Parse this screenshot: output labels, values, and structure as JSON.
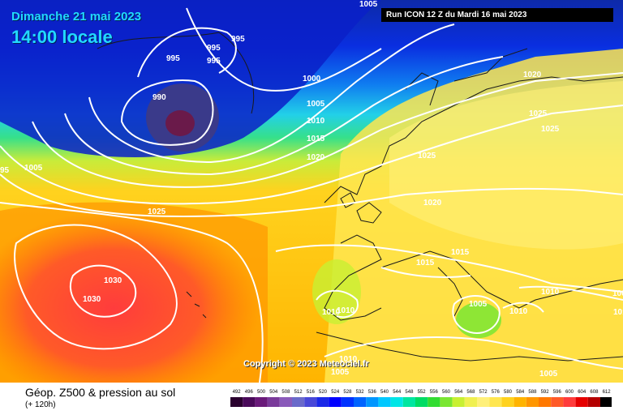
{
  "header": {
    "title": "Dimanche 21 mai 2023",
    "subtitle": "14:00 locale",
    "run_info": "Run ICON 12 Z du Mardi 16 mai 2023"
  },
  "map": {
    "copyright": "Copyright © 2023 Meteociel.fr",
    "isobar_labels": [
      "995",
      "995",
      "995",
      "995",
      "990",
      "1000",
      "1005",
      "1010",
      "1015",
      "1020",
      "1025",
      "1030",
      "1030",
      "1020",
      "1025",
      "1025",
      "1025",
      "1020",
      "1015",
      "1015",
      "1010",
      "1010",
      "1005",
      "1010",
      "1010",
      "1005",
      "1010",
      "1005",
      "1005",
      "95",
      "1005",
      "1010",
      "1005"
    ]
  },
  "legend": {
    "title": "Géop. Z500 & pression au sol",
    "subtitle": "(+ 120h)",
    "scale_values": [
      "492",
      "496",
      "500",
      "504",
      "508",
      "512",
      "516",
      "520",
      "524",
      "528",
      "532",
      "536",
      "540",
      "544",
      "548",
      "552",
      "556",
      "560",
      "564",
      "568",
      "572",
      "576",
      "580",
      "584",
      "588",
      "592",
      "596",
      "600",
      "604",
      "608",
      "612"
    ],
    "scale_colors": [
      "#2a002e",
      "#4a0a5a",
      "#6a1a7a",
      "#7a3a9a",
      "#8a5aba",
      "#6a6aca",
      "#4848d8",
      "#1a28e8",
      "#0000ff",
      "#0032ff",
      "#0064ff",
      "#0096ff",
      "#00c8ff",
      "#00e6e6",
      "#00e6a0",
      "#00dc64",
      "#32dc32",
      "#7ae632",
      "#c8f032",
      "#f0f050",
      "#fff07a",
      "#ffe650",
      "#ffd21e",
      "#ffb400",
      "#ff9600",
      "#ff7800",
      "#ff5a28",
      "#ff3c3c",
      "#e60000",
      "#b40000",
      "#000000"
    ]
  }
}
